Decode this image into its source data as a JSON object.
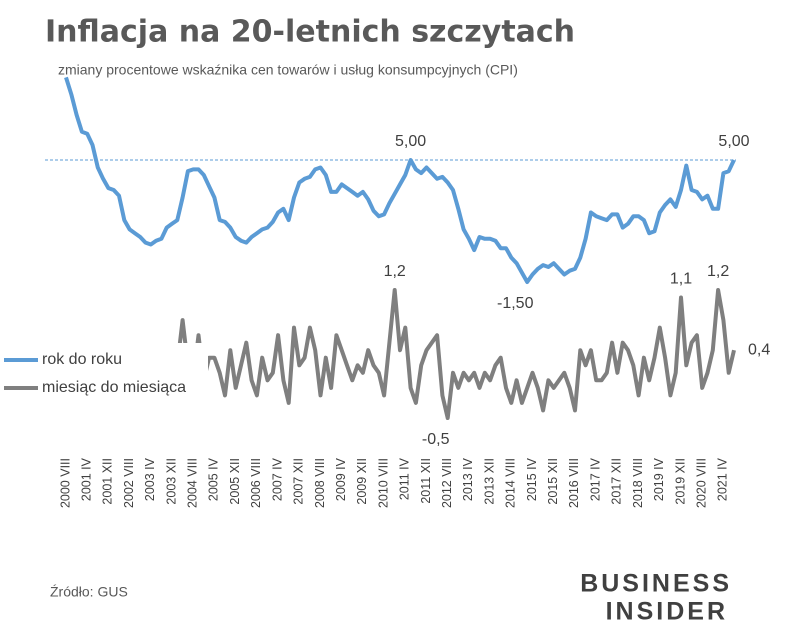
{
  "chart_data": {
    "type": "line",
    "title": "Inflacja na 20-letnich szczytach",
    "subtitle": "zmiany procentowe wskaźnika cen towarów i usług konsumpcyjnych (CPI)",
    "source": "Źródło: GUS",
    "logo": [
      "BUSINESS",
      "INSIDER"
    ],
    "categories": [
      "2000 VIII",
      null,
      null,
      null,
      "2001 IV",
      null,
      null,
      null,
      "2001 XII",
      null,
      null,
      null,
      "2002 VIII",
      null,
      null,
      null,
      "2003 IV",
      null,
      null,
      null,
      "2003 XII",
      null,
      null,
      null,
      "2004 VIII",
      null,
      null,
      null,
      "2005 IV",
      null,
      null,
      null,
      "2005 XII",
      null,
      null,
      null,
      "2006 VIII",
      null,
      null,
      null,
      "2007 IV",
      null,
      null,
      null,
      "2007 XII",
      null,
      null,
      null,
      "2008 VIII",
      null,
      null,
      null,
      "2009 IV",
      null,
      null,
      null,
      "2009 XII",
      null,
      null,
      null,
      "2010 VIII",
      null,
      null,
      null,
      "2011 IV",
      null,
      null,
      null,
      "2011 XII",
      null,
      null,
      null,
      "2012 VIII",
      null,
      null,
      null,
      "2013 IV",
      null,
      null,
      null,
      "2013 XII",
      null,
      null,
      null,
      "2014 VIII",
      null,
      null,
      null,
      "2015 IV",
      null,
      null,
      null,
      "2015 XII",
      null,
      null,
      null,
      "2016 VIII",
      null,
      null,
      null,
      "2017 IV",
      null,
      null,
      null,
      "2017 XII",
      null,
      null,
      null,
      "2018 VIII",
      null,
      null,
      null,
      "2019 IV",
      null,
      null,
      null,
      "2019 XII",
      null,
      null,
      null,
      "2020 VIII",
      null,
      null,
      null,
      "2021 IV",
      null,
      null
    ],
    "series": [
      {
        "name": "rok do roku",
        "color": "#5b9bd5",
        "axis": "y",
        "values": [
          9.4,
          8.5,
          7.4,
          6.5,
          6.4,
          5.8,
          4.6,
          4.0,
          3.5,
          3.4,
          3.1,
          1.8,
          1.3,
          1.1,
          0.9,
          0.6,
          0.5,
          0.7,
          0.8,
          1.4,
          1.6,
          1.8,
          3.0,
          4.4,
          4.5,
          4.5,
          4.2,
          3.6,
          3.0,
          1.8,
          1.7,
          1.4,
          0.9,
          0.7,
          0.6,
          0.9,
          1.1,
          1.3,
          1.4,
          1.7,
          2.2,
          2.4,
          1.8,
          3.0,
          3.8,
          4.0,
          4.1,
          4.5,
          4.6,
          4.2,
          3.3,
          3.3,
          3.7,
          3.5,
          3.3,
          3.1,
          3.3,
          2.9,
          2.3,
          2.0,
          2.1,
          2.7,
          3.2,
          3.7,
          4.2,
          5.0,
          4.5,
          4.3,
          4.6,
          4.3,
          4.0,
          4.1,
          3.8,
          3.4,
          2.4,
          1.3,
          0.8,
          0.2,
          0.9,
          0.8,
          0.8,
          0.7,
          0.3,
          0.3,
          -0.2,
          -0.5,
          -1.0,
          -1.5,
          -1.1,
          -0.8,
          -0.6,
          -0.7,
          -0.5,
          -0.8,
          -1.1,
          -0.9,
          -0.8,
          -0.2,
          0.8,
          2.2,
          2.0,
          1.9,
          1.8,
          2.1,
          2.1,
          1.4,
          1.6,
          2.0,
          2.0,
          1.8,
          1.1,
          1.2,
          2.2,
          2.6,
          2.9,
          2.5,
          3.4,
          4.7,
          3.4,
          3.3,
          2.9,
          3.1,
          2.4,
          2.4,
          4.3,
          4.4,
          5.0
        ],
        "value_labels": [
          null,
          null,
          null,
          null,
          null,
          null,
          null,
          null,
          null,
          null,
          null,
          null,
          null,
          null,
          null,
          null,
          null,
          null,
          null,
          null,
          null,
          null,
          null,
          null,
          null,
          null,
          null,
          null,
          null,
          null,
          null,
          null,
          null,
          null,
          null,
          null,
          null,
          null,
          null,
          null,
          null,
          null,
          null,
          null,
          null,
          null,
          null,
          null,
          null,
          null,
          null,
          null,
          null,
          null,
          null,
          null,
          null,
          null,
          null,
          null,
          null,
          null,
          null,
          null,
          null,
          "5,00",
          null,
          null,
          null,
          null,
          null,
          null,
          null,
          null,
          null,
          null,
          null,
          null,
          null,
          null,
          null,
          null,
          null,
          null,
          null,
          null,
          null,
          "-1,50",
          null,
          null,
          null,
          null,
          null,
          null,
          null,
          null,
          null,
          null,
          null,
          null,
          null,
          null,
          null,
          null,
          null,
          null,
          null,
          null,
          null,
          null,
          null,
          null,
          null,
          null,
          null,
          null,
          null,
          null,
          null,
          null,
          null,
          null,
          null,
          null,
          null,
          null,
          "5,00"
        ]
      },
      {
        "name": "miesiąc do miesiąca",
        "color": "#7f7f7f",
        "axis": "y2",
        "values": [
          null,
          null,
          null,
          null,
          null,
          null,
          null,
          null,
          null,
          null,
          null,
          null,
          null,
          null,
          null,
          null,
          null,
          null,
          null,
          null,
          null,
          0.2,
          0.8,
          0.2,
          0.0,
          0.6,
          0.0,
          0.3,
          0.3,
          0.1,
          -0.2,
          0.4,
          -0.1,
          0.2,
          0.5,
          0.0,
          -0.2,
          0.3,
          0.0,
          0.1,
          0.6,
          0.0,
          -0.3,
          0.7,
          0.2,
          0.3,
          0.7,
          0.4,
          -0.2,
          0.3,
          -0.1,
          0.6,
          0.4,
          0.2,
          0.0,
          0.2,
          0.1,
          0.4,
          0.2,
          0.1,
          -0.2,
          0.5,
          1.2,
          0.4,
          0.7,
          -0.1,
          -0.3,
          0.2,
          0.4,
          0.5,
          0.6,
          -0.2,
          -0.5,
          0.1,
          -0.1,
          0.1,
          0.0,
          0.1,
          -0.1,
          0.1,
          0.0,
          0.2,
          0.3,
          -0.1,
          -0.3,
          0.0,
          -0.3,
          -0.1,
          0.1,
          -0.1,
          -0.4,
          0.0,
          -0.1,
          0.0,
          0.1,
          -0.1,
          -0.4,
          0.4,
          0.2,
          0.4,
          0.0,
          0.0,
          0.1,
          0.5,
          0.1,
          0.5,
          0.4,
          0.2,
          -0.2,
          0.3,
          0.0,
          0.3,
          0.7,
          0.3,
          -0.2,
          0.1,
          1.1,
          0.2,
          0.5,
          0.6,
          -0.1,
          0.1,
          0.4,
          1.2,
          0.8,
          0.1,
          0.4
        ],
        "value_labels": [
          null,
          null,
          null,
          null,
          null,
          null,
          null,
          null,
          null,
          null,
          null,
          null,
          null,
          null,
          null,
          null,
          null,
          null,
          null,
          null,
          null,
          null,
          null,
          null,
          null,
          null,
          null,
          null,
          null,
          null,
          null,
          null,
          null,
          null,
          null,
          null,
          null,
          null,
          null,
          null,
          null,
          null,
          null,
          null,
          null,
          null,
          null,
          null,
          null,
          null,
          null,
          null,
          null,
          null,
          null,
          null,
          null,
          null,
          null,
          null,
          null,
          null,
          "1,2",
          null,
          null,
          null,
          null,
          null,
          null,
          null,
          null,
          null,
          "-0,5",
          null,
          null,
          null,
          null,
          null,
          null,
          null,
          null,
          null,
          null,
          null,
          null,
          null,
          null,
          null,
          null,
          null,
          null,
          null,
          null,
          null,
          null,
          null,
          null,
          null,
          null,
          null,
          null,
          null,
          null,
          null,
          null,
          null,
          null,
          null,
          null,
          null,
          null,
          null,
          null,
          null,
          null,
          null,
          "1,1",
          null,
          null,
          null,
          null,
          null,
          null,
          "1,2",
          null,
          null,
          "0,4"
        ]
      }
    ],
    "ylim": [
      -2,
      9.5
    ],
    "y2lim": [
      -1,
      1.2
    ],
    "reference_line": 5,
    "legend": "left"
  }
}
